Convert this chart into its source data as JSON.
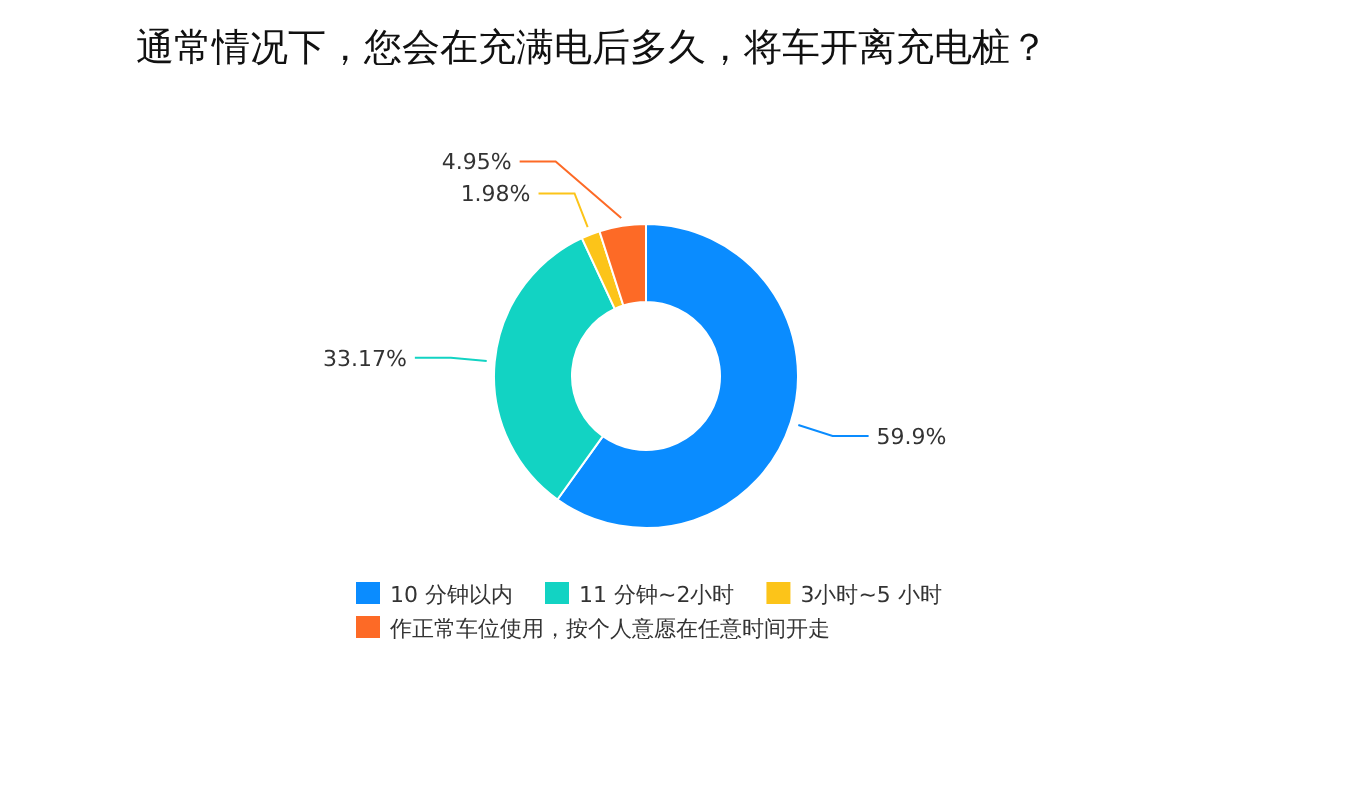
{
  "chart_data": {
    "type": "donut",
    "title": "通常情况下，您会在充满电后多久，将车开离充电桩？",
    "categories": [
      "10 分钟以内",
      "11 分钟~2小时",
      "3小时~5 小时",
      "作正常车位使用，按个人意愿在任意时间开走"
    ],
    "values": [
      59.9,
      33.17,
      1.98,
      4.95
    ],
    "colors": [
      "#0a8cff",
      "#12d3c3",
      "#fcc419",
      "#fd6a26"
    ],
    "value_labels": [
      "59.9%",
      "33.17%",
      "1.98%",
      "4.95%"
    ],
    "legend": "bottom"
  }
}
